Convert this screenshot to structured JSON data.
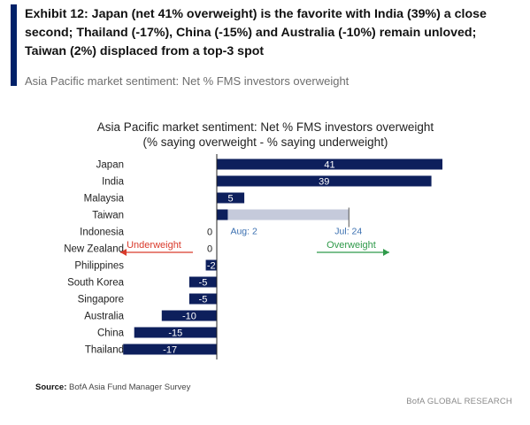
{
  "header": {
    "title": "Exhibit 12: Japan (net 41% overweight) is the favorite with India (39%) a close second; Thailand (-17%), China (-15%) and Australia (-10%) remain unloved; Taiwan (2%) displaced from a top-3 spot",
    "subtitle": "Asia Pacific market sentiment: Net % FMS investors overweight"
  },
  "chart_data": {
    "type": "bar",
    "orientation": "horizontal",
    "title": "Asia Pacific market sentiment: Net % FMS investors overweight",
    "subtitle": "(% saying overweight - % saying underweight)",
    "categories": [
      "Japan",
      "India",
      "Malaysia",
      "Taiwan",
      "Indonesia",
      "New Zealand",
      "Philippines",
      "South Korea",
      "Singapore",
      "Australia",
      "China",
      "Thailand"
    ],
    "values": [
      41,
      39,
      5,
      2,
      0,
      0,
      -2,
      -5,
      -5,
      -10,
      -15,
      -17
    ],
    "value_labels": [
      "41",
      "39",
      "5",
      "",
      "0",
      "0",
      "-2",
      "-5",
      "-5",
      "-10",
      "-15",
      "-17"
    ],
    "taiwan_range": {
      "category": "Taiwan",
      "start": 2,
      "end": 24,
      "start_label": "Aug: 2",
      "end_label": "Jul: 24"
    },
    "annotations": {
      "underweight": "Underweight",
      "overweight": "Overweight"
    },
    "xlim": [
      -20,
      45
    ],
    "colors": {
      "bar": "#0d1f5c",
      "range": "#c5cadb",
      "underweight": "#d93a2b",
      "overweight": "#2f9a4a",
      "range_label": "#3a6fb0"
    }
  },
  "footer": {
    "source_label": "Source:",
    "source_text": " BofA Asia Fund Manager Survey",
    "brand": "BofA GLOBAL RESEARCH"
  }
}
